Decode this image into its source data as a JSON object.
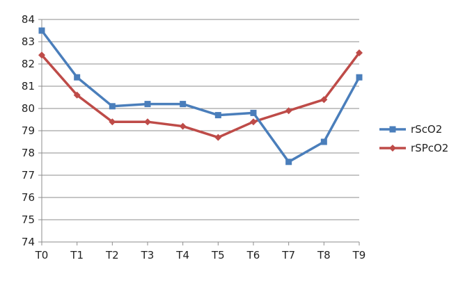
{
  "chart_data": {
    "type": "line",
    "title": "",
    "xlabel": "",
    "ylabel": "",
    "categories": [
      "T0",
      "T1",
      "T2",
      "T3",
      "T4",
      "T5",
      "T6",
      "T7",
      "T8",
      "T9"
    ],
    "ylim": [
      74,
      84
    ],
    "yticks": [
      74,
      75,
      76,
      77,
      78,
      79,
      80,
      81,
      82,
      83,
      84
    ],
    "grid": true,
    "legend_position": "right",
    "series": [
      {
        "name": "rScO2",
        "color": "#4A7EBB",
        "marker": "square",
        "values": [
          83.5,
          81.4,
          80.1,
          80.2,
          80.2,
          79.7,
          79.8,
          77.6,
          78.5,
          81.4
        ]
      },
      {
        "name": "rSPcO2",
        "color": "#BE4B48",
        "marker": "diamond",
        "values": [
          82.4,
          80.6,
          79.4,
          79.4,
          79.2,
          78.7,
          79.4,
          79.9,
          80.4,
          82.5
        ]
      }
    ]
  }
}
